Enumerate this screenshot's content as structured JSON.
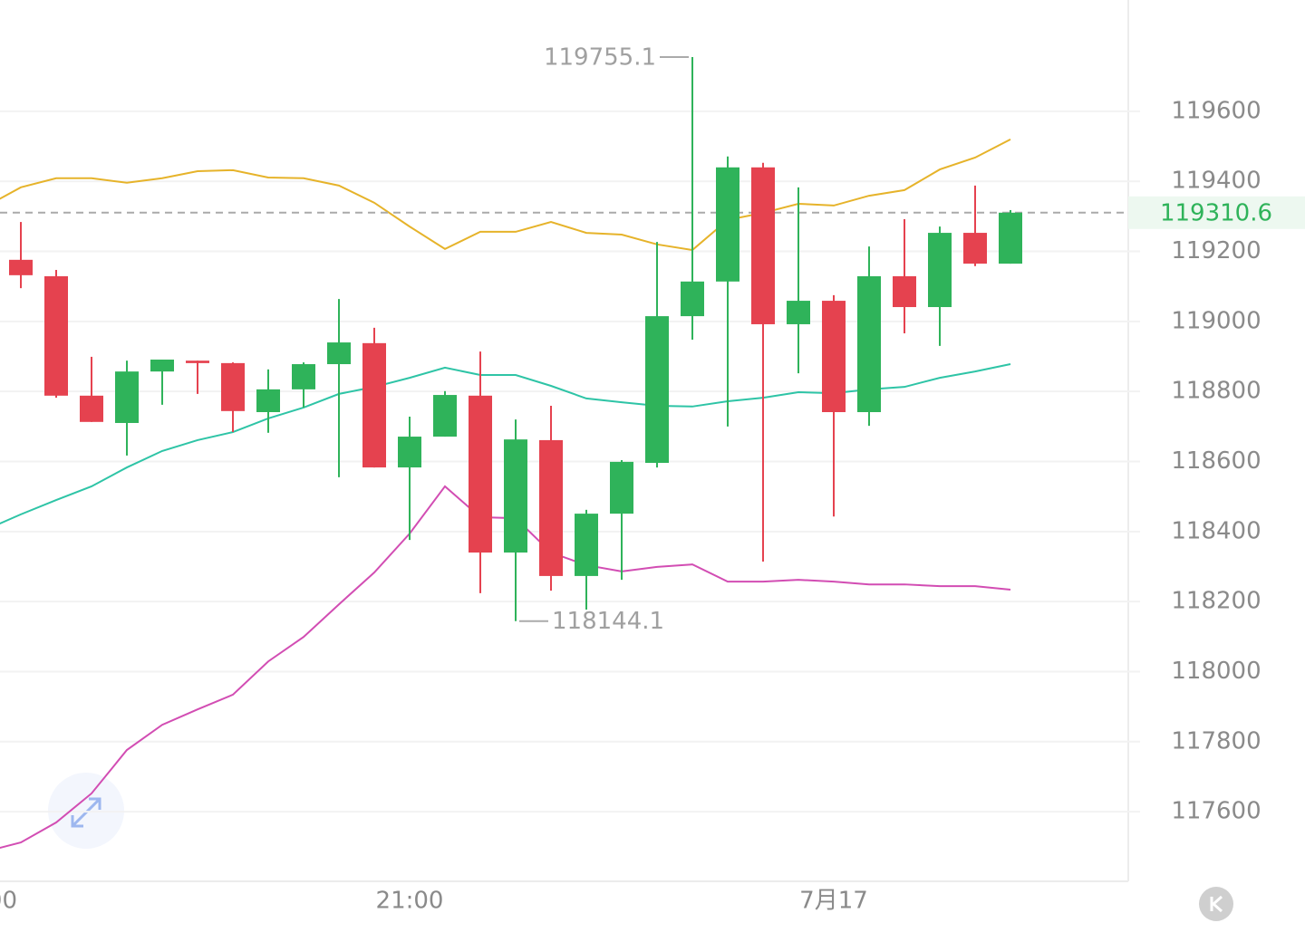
{
  "chart_data": {
    "type": "candlestick",
    "x": [
      "00",
      null,
      null,
      null,
      null,
      null,
      null,
      null,
      null,
      null,
      null,
      null,
      "21:00",
      null,
      null,
      null,
      null,
      null,
      null,
      null,
      null,
      null,
      null,
      null,
      "7月17",
      null,
      null,
      null,
      null,
      null
    ],
    "open": [
      null,
      119176,
      119129,
      118788,
      118710,
      118857,
      118888,
      118881,
      118741,
      118806,
      118878,
      118938,
      118583,
      118671,
      118788,
      118340,
      118661,
      118273,
      118451,
      118596,
      119015,
      119114,
      119440,
      118992,
      119059,
      118741,
      119129,
      119041,
      119253,
      119165
    ],
    "high": [
      null,
      119284,
      119147,
      118899,
      118888,
      118891,
      118888,
      118883,
      118863,
      118883,
      119064,
      118982,
      118728,
      118801,
      118914,
      118720,
      118759,
      118462,
      118604,
      119227,
      119755.1,
      119471,
      119453,
      119383,
      119075,
      119214,
      119292,
      119271,
      119388,
      119318
    ],
    "low": [
      null,
      119095,
      118782,
      118713,
      118617,
      118762,
      118793,
      118684,
      118682,
      118754,
      118555,
      118583,
      118376,
      118671,
      118224,
      118144.1,
      118231,
      118177,
      118262,
      118583,
      118948,
      118700,
      118314,
      118852,
      118443,
      118702,
      118966,
      118930,
      119158,
      119165
    ],
    "close": [
      null,
      119132,
      118788,
      118713,
      118857,
      118891,
      118881,
      118744,
      118806,
      118878,
      118940,
      118583,
      118671,
      118790,
      118340,
      118663,
      118273,
      118451,
      118599,
      119015,
      119114,
      119440,
      118992,
      119059,
      118741,
      119129,
      119041,
      119253,
      119165,
      119310.6
    ],
    "up_color": "#2fb35a",
    "down_color": "#e5424f",
    "lines": [
      {
        "color": "#e6b32a",
        "values": [
          119328,
          119383,
          119409,
          119409,
          119396,
          119409,
          119429,
          119432,
          119411,
          119409,
          119388,
          119339,
          119271,
          119207,
          119256,
          119256,
          119284,
          119253,
          119248,
          119220,
          119204,
          119290,
          119310,
          119336,
          119331,
          119359,
          119375,
          119434,
          119468,
          119520
        ]
      },
      {
        "color": "#2ec4a6",
        "values": [
          118405,
          118449,
          118490,
          118529,
          118583,
          118630,
          118661,
          118684,
          118723,
          118754,
          118793,
          118813,
          118839,
          118868,
          118847,
          118847,
          118816,
          118780,
          118769,
          118759,
          118757,
          118772,
          118782,
          118798,
          118795,
          118806,
          118813,
          118839,
          118857,
          118878
        ]
      },
      {
        "color": "#d24db3",
        "values": [
          117486,
          117512,
          117569,
          117652,
          117776,
          117848,
          117892,
          117934,
          118029,
          118099,
          118192,
          118283,
          118394,
          118529,
          118441,
          118438,
          118340,
          118304,
          118286,
          118299,
          118306,
          118257,
          118257,
          118262,
          118257,
          118249,
          118249,
          118244,
          118244,
          118234
        ]
      }
    ],
    "ylim": [
      117401,
      119918
    ],
    "yticks": [
      117600,
      117800,
      118000,
      118200,
      118400,
      118600,
      118800,
      119000,
      119200,
      119400,
      119600
    ],
    "grid": true
  }
}
